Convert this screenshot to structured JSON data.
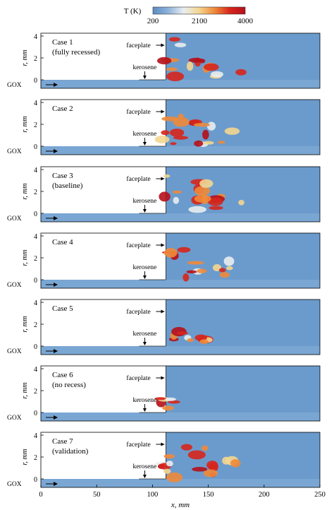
{
  "colorbar": {
    "label": "T (K)",
    "ticks": [
      "200",
      "2100",
      "4000"
    ],
    "stops": [
      "#5b8cc4",
      "#8fb3d9",
      "#e9edf0",
      "#f3d690",
      "#ef8a3a",
      "#d7261c",
      "#b5101a"
    ]
  },
  "axes": {
    "xlabel": "x, mm",
    "ylabel": "r, mm",
    "xticks": [
      "0",
      "50",
      "100",
      "150",
      "200",
      "250"
    ],
    "yticks": [
      "0",
      "2",
      "4"
    ]
  },
  "labels": {
    "faceplate": "faceplate",
    "kerosene": "kerosene",
    "gox": "GOX"
  },
  "cases": [
    {
      "title": "Case 1",
      "subtitle": "(fully recessed)"
    },
    {
      "title": "Case 2",
      "subtitle": ""
    },
    {
      "title": "Case 3",
      "subtitle": "(baseline)"
    },
    {
      "title": "Case 4",
      "subtitle": ""
    },
    {
      "title": "Case 5",
      "subtitle": ""
    },
    {
      "title": "Case 6",
      "subtitle": "(no recess)"
    },
    {
      "title": "Case 7",
      "subtitle": "(validation)"
    }
  ],
  "colors": {
    "background_field": "#6b9bcc",
    "white": "#ffffff",
    "hot": "#d7261c",
    "warm": "#f3d690"
  }
}
